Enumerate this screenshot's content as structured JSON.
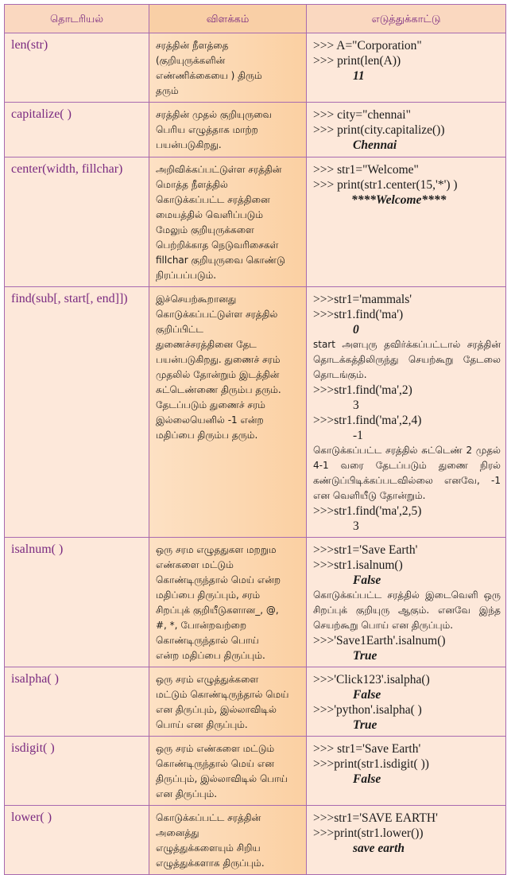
{
  "headers": [
    "தொடரியல்",
    "விளக்கம்",
    "எடுத்துக்காட்டு"
  ],
  "rows": [
    {
      "func": "len(str)",
      "desc": [
        "சரத்தின் நீளத்தை",
        "(குறியுருக்களின்",
        "எண்ணிக்கையை ) திரும்",
        "தரும்"
      ],
      "example": [
        {
          "kind": "code",
          "text": ">>> A=\"Corporation\""
        },
        {
          "kind": "code",
          "text": ">>> print(len(A))"
        },
        {
          "kind": "output",
          "text": "11"
        }
      ]
    },
    {
      "func": "capitalize( )",
      "desc": [
        "சரத்தின் முதல் குறியுருவை",
        "பெரிய எழுத்தாக மாற்ற",
        "பயன்படுகிறது."
      ],
      "example": [
        {
          "kind": "code",
          "text": ">>> city=\"chennai\""
        },
        {
          "kind": "code",
          "text": ">>> print(city.capitalize())"
        },
        {
          "kind": "output",
          "text": "Chennai"
        }
      ]
    },
    {
      "func": "center(width, fillchar)",
      "desc": [
        "அறிவிக்கப்பட்டுள்ள சரத்தின்",
        "மொத்த நீளத்தில்",
        "கொடுக்கப்பட்ட சரத்தினை",
        "மையத்தில் வெளிப்படும்",
        "மேலும் குறியுருக்களை",
        "பெற்றிக்காத நெடுவரிசைகள்",
        "fillchar குறியுருவை கொண்டு",
        "நிரப்பப்படும்."
      ],
      "example": [
        {
          "kind": "code",
          "text": ">>> str1=\"Welcome\""
        },
        {
          "kind": "code",
          "text": ">>> print(str1.center(15,'*') )"
        },
        {
          "kind": "output",
          "text": "****Welcome****"
        }
      ]
    },
    {
      "func": "find(sub[, start[, end]])",
      "desc": [
        "இச்செயற்கூறானது",
        "கொடுக்கப்பட்டுள்ள சரத்தில்",
        "குறிப்பிட்ட",
        "துணைச்சரத்தினை தேட",
        "பயன்படுகிறது. துணைச் சரம்",
        "முதலில் தோன்றும் இடத்தின்",
        "சுட்டெண்ணை திரும்ப தரும்.",
        "தேடப்படும் துணைச் சரம்",
        "இல்லையெனில் -1 என்ற",
        "மதிப்பை திரும்ப தரும்."
      ],
      "example": [
        {
          "kind": "code",
          "text": ">>>str1='mammals'"
        },
        {
          "kind": "code",
          "text": ">>>str1.find('ma')"
        },
        {
          "kind": "output",
          "text": "0"
        },
        {
          "kind": "note",
          "text": "start அளபுரு தவிர்க்கப்பட்டால் சரத்தின் தொடக்கத்திலிருந்து செயற்கூறு தேடலை தொடங்கும்."
        },
        {
          "kind": "code",
          "text": ">>>str1.find('ma',2)"
        },
        {
          "kind": "plain-output",
          "text": "3"
        },
        {
          "kind": "code",
          "text": ">>>str1.find('ma',2,4)"
        },
        {
          "kind": "plain-output",
          "text": "-1"
        },
        {
          "kind": "note",
          "text": "கொடுக்கப்பட்ட சரத்தில் சுட்டெண் 2 முதல் 4-1 வரை தேடப்படும் துணை நிரல் கண்டுப்பிடிக்கப்படவில்லை எனவே, -1 என வெளியீடு தோன்றும்."
        },
        {
          "kind": "code",
          "text": ">>>str1.find('ma',2,5)"
        },
        {
          "kind": "plain-output",
          "text": "3"
        }
      ]
    },
    {
      "func": "isalnum( )",
      "desc": [
        "ஒரு சரம எழுததுகள மறறும",
        "எண்களை மட்டும்",
        "கொண்டிருந்தால் மெய் என்ற",
        "மதிப்பை திருப்பும், சரம்",
        "சிறப்புக் குறியீடுகளான_, @,",
        "#, *, போன்றவற்றை",
        "கொண்டிருந்தால் பொய்",
        "என்ற மதிப்பை திருப்பும்."
      ],
      "example": [
        {
          "kind": "code",
          "text": ">>>str1='Save Earth'"
        },
        {
          "kind": "code",
          "text": ">>>str1.isalnum()"
        },
        {
          "kind": "output",
          "text": "False"
        },
        {
          "kind": "note",
          "text": "கொடுக்கப்பட்ட சரத்தில் இடைவெளி ஒரு சிறப்புக் குறியுரு ஆகும். எனவே இந்த செயற்கூறு பொய் என திருப்பும்."
        },
        {
          "kind": "code",
          "text": ">>>'Save1Earth'.isalnum()"
        },
        {
          "kind": "output",
          "text": "True"
        }
      ]
    },
    {
      "func": "isalpha( )",
      "desc": [
        "ஒரு சரம் எழுத்துக்களை",
        "மட்டும் கொண்டிருந்தால் மெய்",
        "என திருப்பும், இல்லாவிடில்",
        "பொய் என திருப்பும்."
      ],
      "example": [
        {
          "kind": "code",
          "text": ">>>'Click123'.isalpha()"
        },
        {
          "kind": "output",
          "text": "False"
        },
        {
          "kind": "code",
          "text": ">>>'python'.isalpha( )"
        },
        {
          "kind": "output",
          "text": "True"
        }
      ]
    },
    {
      "func": "isdigit( )",
      "desc": [
        "ஒரு சரம் எண்களை  மட்டும்",
        "கொண்டிருந்தால் மெய் என",
        "திருப்பும், இல்லாவிடில் பொய்",
        "என திருப்பும்."
      ],
      "example": [
        {
          "kind": "code",
          "text": ">>> str1='Save Earth'"
        },
        {
          "kind": "code",
          "text": ">>>print(str1.isdigit( ))"
        },
        {
          "kind": "output",
          "text": "False"
        }
      ]
    },
    {
      "func": "lower( )",
      "desc": [
        "கொடுக்கப்பட்ட சரத்தின்",
        "அனைத்து",
        "எழுத்துக்களையும் சிறிய",
        "எழுத்துக்களாக திருப்பும்."
      ],
      "example": [
        {
          "kind": "code",
          "text": ">>>str1='SAVE EARTH'"
        },
        {
          "kind": "code",
          "text": ">>>print(str1.lower())"
        },
        {
          "kind": "output",
          "text": "save earth"
        }
      ]
    }
  ]
}
